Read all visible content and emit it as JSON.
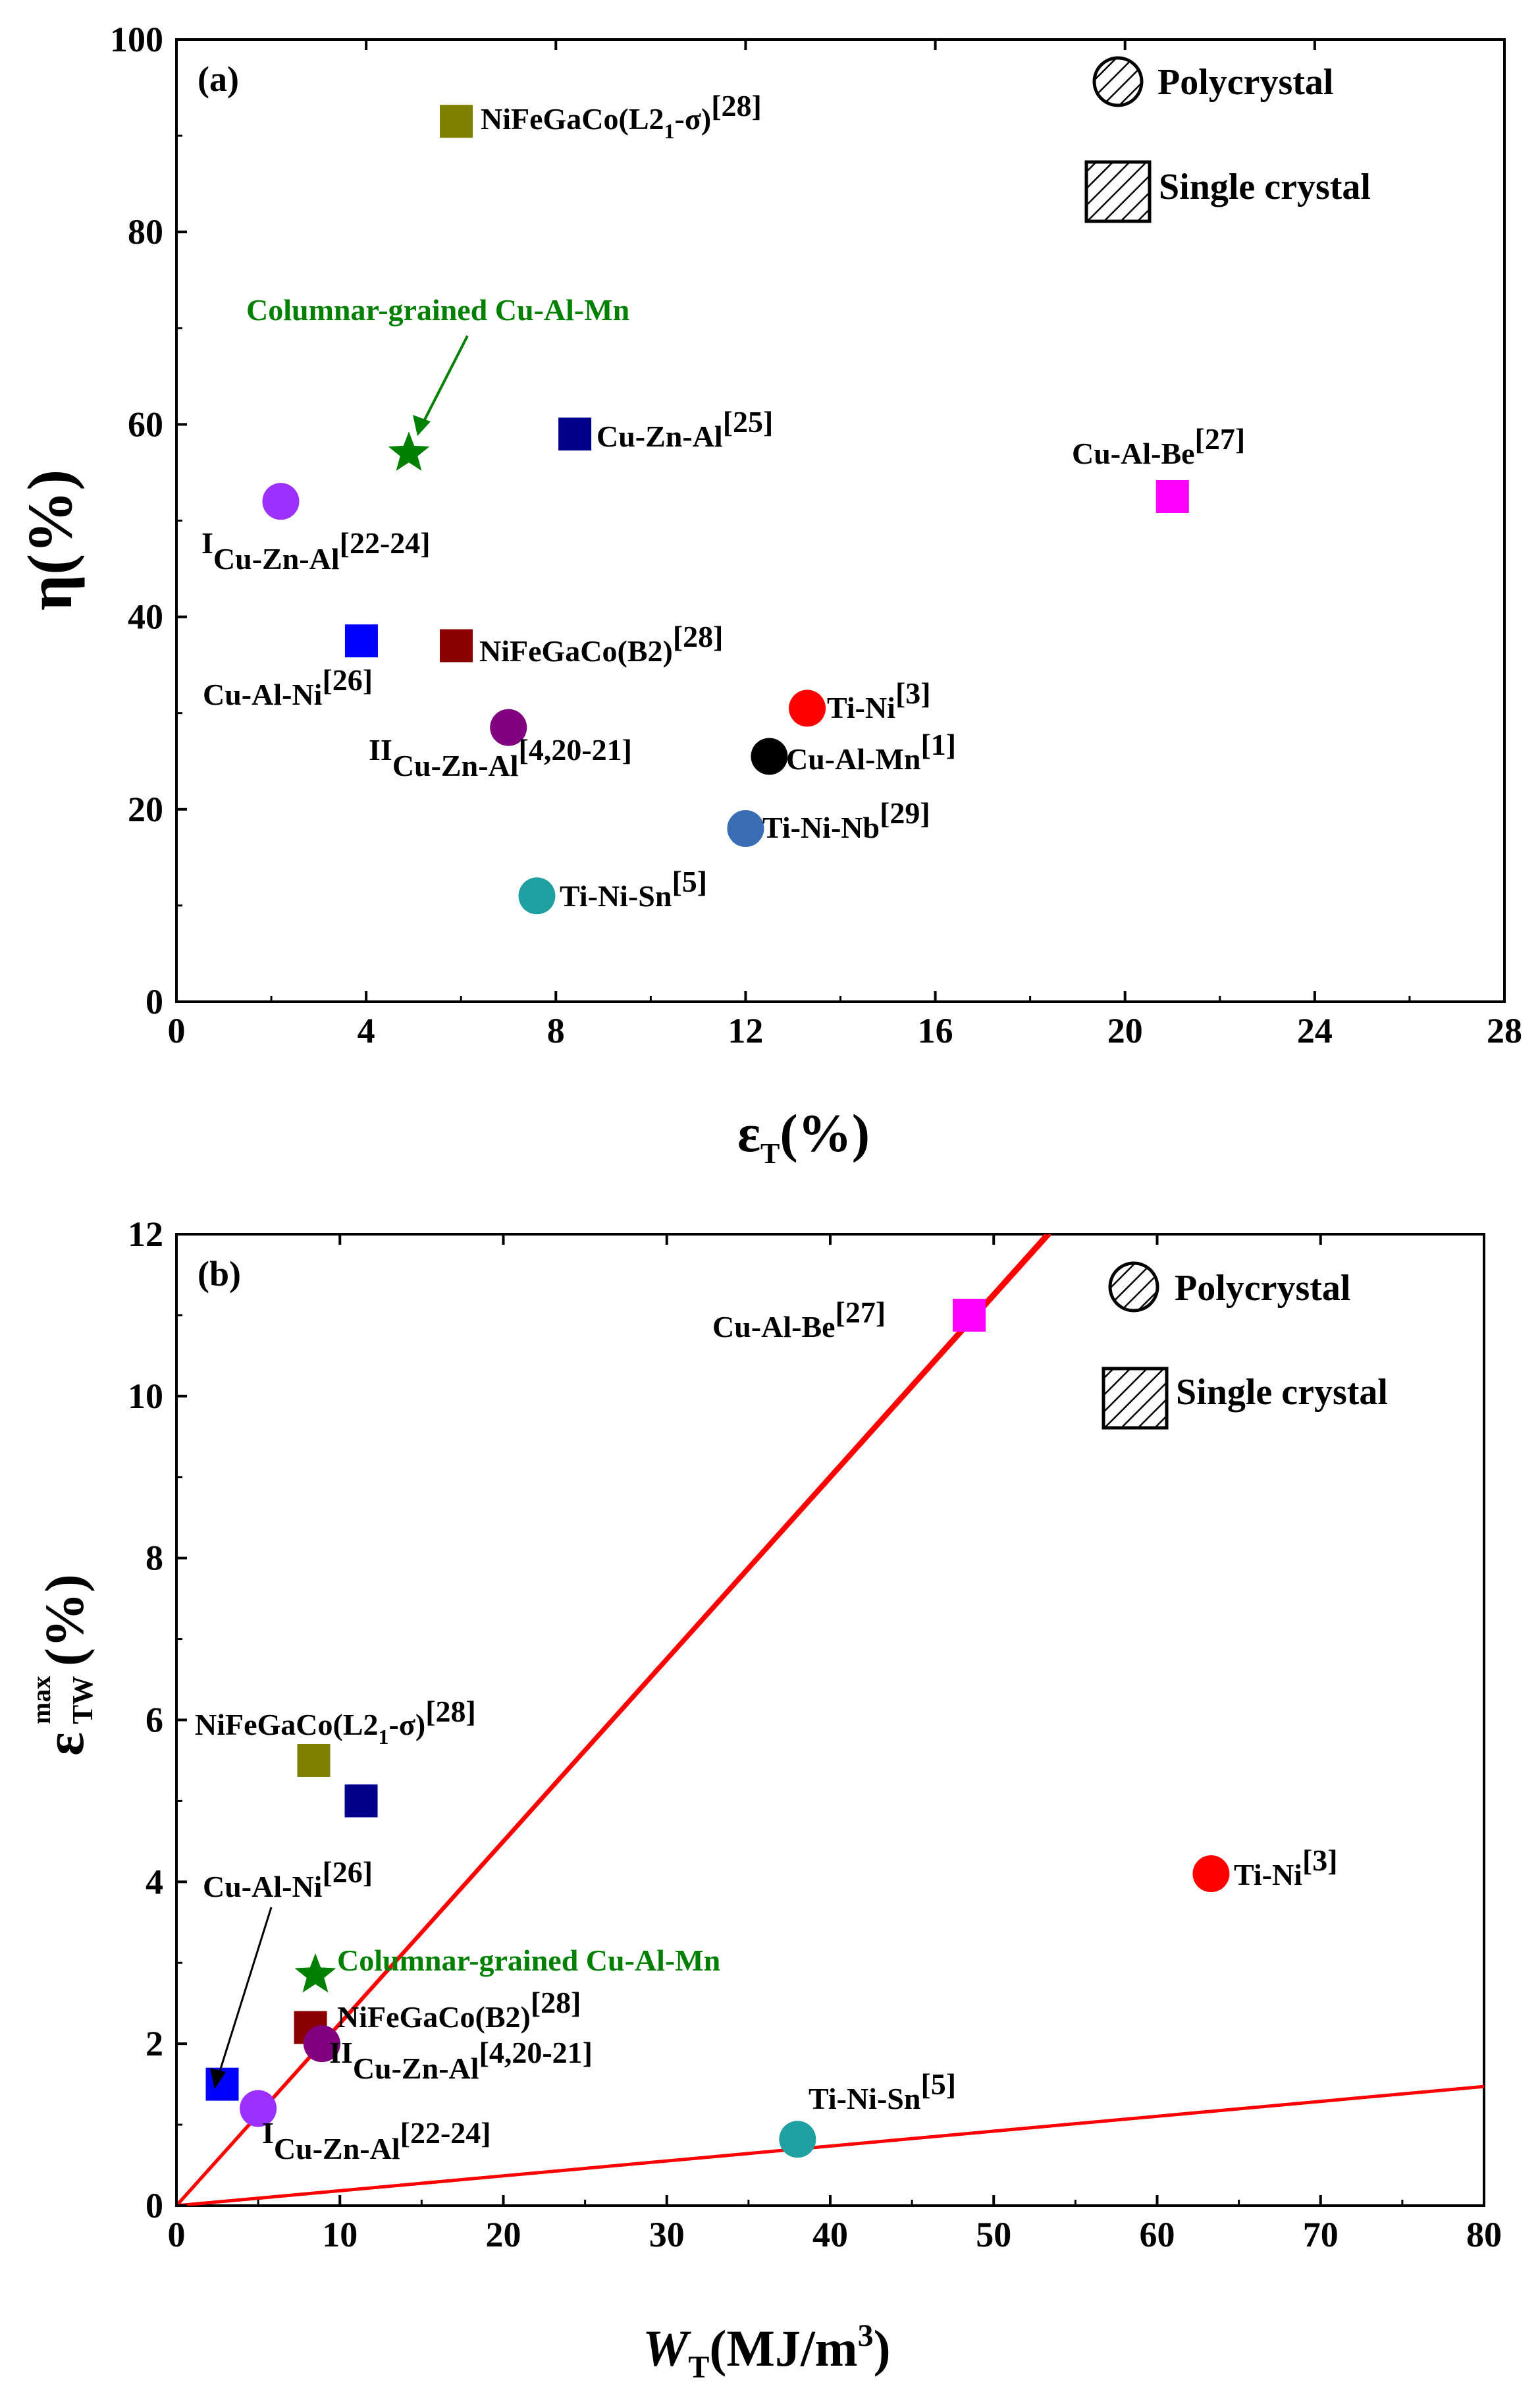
{
  "chart_data": [
    {
      "type": "scatter",
      "panel_label": "(a)",
      "xlim": [
        0,
        28
      ],
      "ylim": [
        0,
        100
      ],
      "xticks": [
        "0",
        "4",
        "8",
        "12",
        "16",
        "20",
        "24",
        "28"
      ],
      "yticks": [
        "0",
        "20",
        "40",
        "60",
        "80",
        "100"
      ],
      "legend": [
        "Polycrystal",
        "Single crystal"
      ],
      "legend_placement": "top-right",
      "grid": false,
      "points": [
        {
          "label": "NiFeGaCo(L21-σ)[28]",
          "x": 5.9,
          "y": 91.5,
          "shape": "square",
          "color": "#808000"
        },
        {
          "label": "Columnar-grained Cu-Al-Mn",
          "x": 4.9,
          "y": 57,
          "shape": "star",
          "color": "#008000"
        },
        {
          "label": "Cu-Zn-Al[25]",
          "x": 8.4,
          "y": 59,
          "shape": "square",
          "color": "#00008b"
        },
        {
          "label": "ICu-Zn-Al[22-24]",
          "x": 2.2,
          "y": 52,
          "shape": "circle",
          "color": "#9b30ff"
        },
        {
          "label": "Cu-Al-Be[27]",
          "x": 21,
          "y": 52.5,
          "shape": "square",
          "color": "#ff00ff"
        },
        {
          "label": "Cu-Al-Ni[26]",
          "x": 3.9,
          "y": 37.5,
          "shape": "square",
          "color": "#0000ff"
        },
        {
          "label": "NiFeGaCo(B2)[28]",
          "x": 5.9,
          "y": 37,
          "shape": "square",
          "color": "#8b0000"
        },
        {
          "label": "IICu-Zn-Al[4,20-21]",
          "x": 7,
          "y": 28.5,
          "shape": "circle",
          "color": "#800080"
        },
        {
          "label": "Ti-Ni[3]",
          "x": 13.3,
          "y": 30.5,
          "shape": "circle",
          "color": "#ff0000"
        },
        {
          "label": "Cu-Al-Mn[1]",
          "x": 12.5,
          "y": 25.5,
          "shape": "circle",
          "color": "#000000"
        },
        {
          "label": "Ti-Ni-Nb[29]",
          "x": 12,
          "y": 18,
          "shape": "circle",
          "color": "#3a6eb4"
        },
        {
          "label": "Ti-Ni-Sn[5]",
          "x": 7.6,
          "y": 11,
          "shape": "circle",
          "color": "#20a0a0"
        }
      ]
    },
    {
      "type": "scatter",
      "panel_label": "(b)",
      "xlim": [
        0,
        80
      ],
      "ylim": [
        0,
        12
      ],
      "xticks": [
        "0",
        "10",
        "20",
        "30",
        "40",
        "50",
        "60",
        "70",
        "80"
      ],
      "yticks": [
        "0",
        "2",
        "4",
        "6",
        "8",
        "10",
        "12"
      ],
      "legend": [
        "Polycrystal",
        "Single crystal"
      ],
      "legend_placement": "top-right",
      "grid": false,
      "reference_line_slopes": [
        0.2255,
        0.2245,
        0.0184
      ],
      "reference_line_color": "#ff0000",
      "points": [
        {
          "label": "Cu-Al-Be[27]",
          "x": 48.5,
          "y": 11,
          "shape": "square",
          "color": "#ff00ff"
        },
        {
          "label": "NiFeGaCo(L21-σ)[28]",
          "x": 8.4,
          "y": 5.5,
          "shape": "square",
          "color": "#808000"
        },
        {
          "label": "",
          "x": 11.3,
          "y": 5,
          "shape": "square",
          "color": "#00008b"
        },
        {
          "label": "Ti-Ni[3]",
          "x": 63.3,
          "y": 4.1,
          "shape": "circle",
          "color": "#ff0000"
        },
        {
          "label": "Cu-Al-Ni[26]",
          "x": 2.8,
          "y": 1.5,
          "shape": "square",
          "color": "#0000ff"
        },
        {
          "label": "Columnar-grained Cu-Al-Mn",
          "x": 8.5,
          "y": 2.85,
          "shape": "star",
          "color": "#008000"
        },
        {
          "label": "NiFeGaCo(B2)[28]",
          "x": 8.2,
          "y": 2.2,
          "shape": "square",
          "color": "#8b0000"
        },
        {
          "label": "IICu-Zn-Al[4,20-21]",
          "x": 8.9,
          "y": 2,
          "shape": "circle",
          "color": "#800080"
        },
        {
          "label": "ICu-Zn-Al[22-24]",
          "x": 5,
          "y": 1.2,
          "shape": "circle",
          "color": "#9b30ff"
        },
        {
          "label": "Ti-Ni-Sn[5]",
          "x": 38,
          "y": 0.82,
          "shape": "circle",
          "color": "#20a0a0"
        }
      ]
    }
  ],
  "text": {
    "panel_a": {
      "letter": "(a)",
      "legend_poly": "Polycrystal",
      "legend_single": "Single crystal",
      "xlabel_base": "ε",
      "xlabel_sub": "T",
      "xlabel_rest": "(%)",
      "ylabel": "η(%)",
      "labels": {
        "nifega_l21_main": "NiFeGaCo(L2",
        "nifega_l21_sub": "1",
        "nifega_l21_tail": "-σ)",
        "nifega_l21_ref": "[28]",
        "columnar": "Columnar-grained Cu-Al-Mn",
        "cuznal25": "Cu-Zn-Al",
        "cuznal25_ref": "[25]",
        "cualbe": "Cu-Al-Be",
        "cualbe_ref": "[27]",
        "i_prefix": "I",
        "i_main": "Cu-Zn-Al",
        "i_ref": "[22-24]",
        "cualni": "Cu-Al-Ni",
        "cualni_ref": "[26]",
        "nifega_b2": "NiFeGaCo(B2)",
        "nifega_b2_ref": "[28]",
        "ii_prefix": "II",
        "ii_main": "Cu-Zn-Al",
        "ii_ref": "[4,20-21]",
        "tini": "Ti-Ni",
        "tini_ref": "[3]",
        "cualmn": "Cu-Al-Mn",
        "cualmn_ref": "[1]",
        "tininb": "Ti-Ni-Nb",
        "tininb_ref": "[29]",
        "tinisn": "Ti-Ni-Sn",
        "tinisn_ref": "[5]"
      }
    },
    "panel_b": {
      "letter": "(b)",
      "legend_poly": "Polycrystal",
      "legend_single": "Single crystal",
      "xlabel_base": "W",
      "xlabel_sub": "T",
      "xlabel_rest": "(MJ/m",
      "xlabel_sup": "3",
      "xlabel_close": ")",
      "ylabel_base": "ε",
      "ylabel_sub": "TW",
      "ylabel_sup": "max",
      "ylabel_rest": "(%)",
      "labels": {
        "cualbe": "Cu-Al-Be",
        "cualbe_ref": "[27]",
        "nifega_l21_main": "NiFeGaCo(L2",
        "nifega_l21_sub": "1",
        "nifega_l21_tail": "-σ)",
        "nifega_l21_ref": "[28]",
        "tini": "Ti-Ni",
        "tini_ref": "[3]",
        "cualni": "Cu-Al-Ni",
        "cualni_ref": "[26]",
        "columnar": "Columnar-grained Cu-Al-Mn",
        "nifega_b2": "NiFeGaCo(B2)",
        "nifega_b2_ref": "[28]",
        "ii_prefix": "II",
        "ii_main": "Cu-Zn-Al",
        "ii_ref": "[4,20-21]",
        "i_prefix": "I",
        "i_main": "Cu-Zn-Al",
        "i_ref": "[22-24]",
        "tinisn": "Ti-Ni-Sn",
        "tinisn_ref": "[5]"
      }
    }
  }
}
